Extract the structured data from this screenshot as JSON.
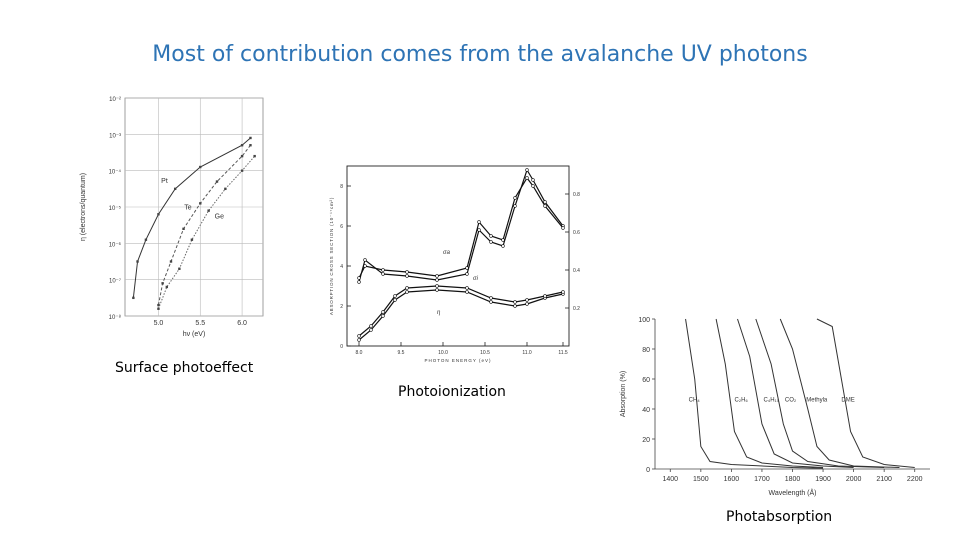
{
  "slide": {
    "title": "Most of contribution comes from the avalanche UV photons",
    "captions": {
      "surface": "Surface photoeffect",
      "photoionization": "Photoionization",
      "photoabsorption": "Photabsorption"
    }
  },
  "chart_data": [
    {
      "type": "scatter",
      "name": "surface-photoeffect",
      "xlabel": "hν (eV)",
      "ylabel": "η (electrons/quantum)",
      "x_ticks": [
        "5.0",
        "5.5",
        "6.0"
      ],
      "y_ticks": [
        "10⁻⁸",
        "10⁻⁷",
        "10⁻⁶",
        "10⁻⁵",
        "10⁻⁴",
        "10⁻³",
        "10⁻²"
      ],
      "xlim": [
        4.6,
        6.25
      ],
      "ylim_log10": [
        -8,
        -2
      ],
      "grid": true,
      "series": [
        {
          "name": "Pt",
          "x": [
            4.7,
            4.75,
            4.85,
            5.0,
            5.2,
            5.5,
            6.0,
            6.1
          ],
          "y": [
            -7.5,
            -6.5,
            -5.9,
            -5.2,
            -4.5,
            -3.9,
            -3.3,
            -3.1
          ]
        },
        {
          "name": "Te",
          "x": [
            5.0,
            5.05,
            5.15,
            5.3,
            5.5,
            5.7,
            6.0,
            6.1
          ],
          "y": [
            -7.7,
            -7.1,
            -6.5,
            -5.6,
            -4.9,
            -4.3,
            -3.6,
            -3.3
          ]
        },
        {
          "name": "Ge",
          "x": [
            5.0,
            5.1,
            5.25,
            5.4,
            5.6,
            5.8,
            6.0,
            6.15
          ],
          "y": [
            -7.8,
            -7.2,
            -6.7,
            -5.9,
            -5.1,
            -4.5,
            -4.0,
            -3.6
          ]
        }
      ]
    },
    {
      "type": "line",
      "name": "photoionization",
      "xlabel": "PHOTON ENERGY (eV)",
      "ylabel": "ABSORPTION CROSS SECTION (10⁻¹⁷cm²)",
      "x_ticks": [
        "8.0",
        "9.5",
        "10.0",
        "10.5",
        "11.0",
        "11.5"
      ],
      "y_ticks": [
        "0",
        "2",
        "4",
        "6",
        "8"
      ],
      "y2_ticks": [
        "0.2",
        "0.4",
        "0.6",
        "0.8"
      ],
      "series_labels": [
        "σa",
        "σi",
        "η"
      ],
      "xlim": [
        8.0,
        11.7
      ],
      "ylim": [
        0,
        9
      ],
      "series": [
        {
          "x": [
            8.2,
            8.3,
            8.6,
            9.0,
            9.5,
            10.0,
            10.2,
            10.4,
            10.6,
            10.8,
            11.0,
            11.1,
            11.3,
            11.6
          ],
          "y": [
            3.2,
            4.3,
            3.6,
            3.5,
            3.3,
            3.6,
            5.8,
            5.2,
            5.0,
            7.0,
            8.8,
            8.3,
            7.2,
            6.0
          ]
        },
        {
          "x": [
            8.2,
            8.3,
            8.6,
            9.0,
            9.5,
            10.0,
            10.2,
            10.4,
            10.6,
            10.8,
            11.0,
            11.1,
            11.3,
            11.6
          ],
          "y": [
            3.4,
            4.0,
            3.8,
            3.7,
            3.5,
            3.9,
            6.2,
            5.5,
            5.3,
            7.4,
            8.4,
            8.0,
            7.0,
            5.9
          ]
        },
        {
          "x": [
            8.2,
            8.4,
            8.6,
            8.8,
            9.0,
            9.5,
            10.0,
            10.4,
            10.8,
            11.0,
            11.3,
            11.6
          ],
          "y": [
            0.3,
            0.8,
            1.5,
            2.3,
            2.7,
            2.8,
            2.7,
            2.2,
            2.0,
            2.1,
            2.4,
            2.6
          ]
        },
        {
          "x": [
            8.2,
            8.4,
            8.6,
            8.8,
            9.0,
            9.5,
            10.0,
            10.4,
            10.8,
            11.0,
            11.3,
            11.6
          ],
          "y": [
            0.5,
            1.0,
            1.7,
            2.5,
            2.9,
            3.0,
            2.9,
            2.4,
            2.2,
            2.3,
            2.5,
            2.7
          ]
        }
      ]
    },
    {
      "type": "line",
      "name": "photoabsorption",
      "xlabel": "Wavelength (Å)",
      "ylabel": "Absorption (%)",
      "x_ticks": [
        "1400",
        "1500",
        "1600",
        "1700",
        "1800",
        "1900",
        "2000",
        "2100",
        "2200"
      ],
      "y_ticks": [
        "0",
        "20",
        "40",
        "60",
        "80",
        "100"
      ],
      "xlim": [
        1350,
        2250
      ],
      "ylim": [
        0,
        100
      ],
      "series": [
        {
          "name": "CH₄",
          "x": [
            1450,
            1480,
            1500,
            1530,
            1600,
            1800,
            1900
          ],
          "y": [
            100,
            60,
            15,
            5,
            3,
            1,
            0.5
          ]
        },
        {
          "name": "C₂H₆",
          "x": [
            1550,
            1580,
            1610,
            1650,
            1700,
            1800,
            1900
          ],
          "y": [
            100,
            70,
            25,
            8,
            4,
            2,
            1
          ]
        },
        {
          "name": "C₄H₁₀",
          "x": [
            1620,
            1660,
            1700,
            1740,
            1800,
            1900,
            2000
          ],
          "y": [
            100,
            75,
            30,
            10,
            4,
            2,
            1
          ]
        },
        {
          "name": "CO₂",
          "x": [
            1680,
            1730,
            1770,
            1800,
            1850,
            1950,
            2100
          ],
          "y": [
            100,
            70,
            30,
            12,
            5,
            2,
            1
          ]
        },
        {
          "name": "Methyla",
          "x": [
            1760,
            1800,
            1850,
            1880,
            1920,
            2000,
            2150
          ],
          "y": [
            100,
            80,
            40,
            15,
            6,
            2,
            1
          ]
        },
        {
          "name": "DME",
          "x": [
            1880,
            1930,
            1960,
            1990,
            2030,
            2100,
            2200
          ],
          "y": [
            100,
            95,
            60,
            25,
            8,
            3,
            1
          ]
        }
      ]
    }
  ]
}
